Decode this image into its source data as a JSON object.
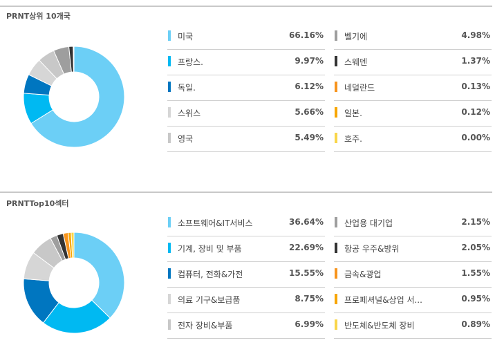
{
  "countries": {
    "title": "PRNT상위 10개국",
    "chart_data": {
      "type": "pie",
      "categories": [
        "미국",
        "프랑스.",
        "독일.",
        "스위스",
        "영국",
        "벨기에",
        "스웨덴",
        "네덜란드",
        "일본.",
        "호주."
      ],
      "values": [
        66.16,
        9.97,
        6.12,
        5.66,
        5.49,
        4.98,
        1.37,
        0.13,
        0.12,
        0.0
      ],
      "colors": [
        "#6ccff6",
        "#00b9f2",
        "#0076c0",
        "#d6d6d6",
        "#c8c8c8",
        "#9e9e9e",
        "#333333",
        "#f7941d",
        "#f7a600",
        "#f9d64a"
      ],
      "display_values": [
        "66.16%",
        "9.97%",
        "6.12%",
        "5.66%",
        "5.49%",
        "4.98%",
        "1.37%",
        "0.13%",
        "0.12%",
        "0.00%"
      ]
    }
  },
  "sectors": {
    "title": "PRNTTop10섹터",
    "chart_data": {
      "type": "pie",
      "categories": [
        "소프트웨어&IT서비스",
        "기계, 장비 및 부품",
        "컴퓨터, 전화&가전",
        "의료 기구&보급품",
        "전자 장비&부품",
        "산업용 대기업",
        "항공 우주&방위",
        "금속&광업",
        "프로페셔널&상업 서...",
        "반도체&반도체 장비"
      ],
      "values": [
        36.64,
        22.69,
        15.55,
        8.75,
        6.99,
        2.15,
        2.05,
        1.55,
        0.95,
        0.89
      ],
      "colors": [
        "#6ccff6",
        "#00b9f2",
        "#0076c0",
        "#d6d6d6",
        "#c8c8c8",
        "#9e9e9e",
        "#333333",
        "#f7941d",
        "#f7a600",
        "#f9d64a"
      ],
      "display_values": [
        "36.64%",
        "22.69%",
        "15.55%",
        "8.75%",
        "6.99%",
        "2.15%",
        "2.05%",
        "1.55%",
        "0.95%",
        "0.89%"
      ]
    }
  }
}
